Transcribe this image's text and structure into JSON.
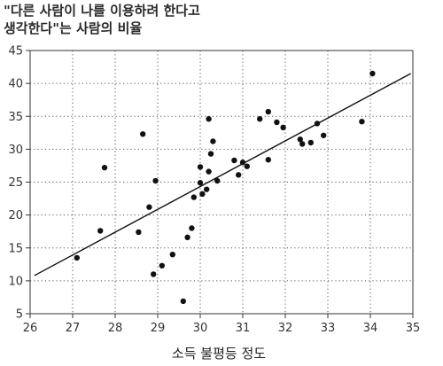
{
  "title_lines": [
    "\"다른 사람이 나를 이용하려 한다고",
    "생각한다\"는 사람의 비율"
  ],
  "chart_data": {
    "type": "scatter",
    "title": "\"다른 사람이 나를 이용하려 한다고 생각한다\"는 사람의 비율",
    "xlabel": "소득 불평등 정도",
    "ylabel": "",
    "xlim": [
      26,
      35
    ],
    "ylim": [
      5,
      45
    ],
    "x_ticks": [
      26,
      27,
      28,
      29,
      30,
      31,
      32,
      33,
      34,
      35
    ],
    "y_ticks": [
      5,
      10,
      15,
      20,
      25,
      30,
      35,
      40,
      45
    ],
    "grid": true,
    "grid_style": "dotted",
    "points": [
      {
        "x": 27.1,
        "y": 13.5
      },
      {
        "x": 27.65,
        "y": 17.6
      },
      {
        "x": 27.75,
        "y": 27.2
      },
      {
        "x": 28.55,
        "y": 17.4
      },
      {
        "x": 28.65,
        "y": 32.3
      },
      {
        "x": 28.8,
        "y": 21.2
      },
      {
        "x": 28.9,
        "y": 11.0
      },
      {
        "x": 28.95,
        "y": 25.2
      },
      {
        "x": 29.1,
        "y": 12.3
      },
      {
        "x": 29.35,
        "y": 14.0
      },
      {
        "x": 29.6,
        "y": 6.9
      },
      {
        "x": 29.7,
        "y": 16.6
      },
      {
        "x": 29.8,
        "y": 18.0
      },
      {
        "x": 29.85,
        "y": 22.7
      },
      {
        "x": 30.0,
        "y": 27.3
      },
      {
        "x": 30.0,
        "y": 24.9
      },
      {
        "x": 30.05,
        "y": 23.2
      },
      {
        "x": 30.15,
        "y": 23.9
      },
      {
        "x": 30.2,
        "y": 34.6
      },
      {
        "x": 30.2,
        "y": 26.6
      },
      {
        "x": 30.25,
        "y": 29.3
      },
      {
        "x": 30.3,
        "y": 31.2
      },
      {
        "x": 30.4,
        "y": 25.2
      },
      {
        "x": 30.8,
        "y": 28.3
      },
      {
        "x": 30.9,
        "y": 26.1
      },
      {
        "x": 31.0,
        "y": 28.0
      },
      {
        "x": 31.1,
        "y": 27.4
      },
      {
        "x": 31.4,
        "y": 34.6
      },
      {
        "x": 31.6,
        "y": 35.7
      },
      {
        "x": 31.6,
        "y": 28.4
      },
      {
        "x": 31.8,
        "y": 34.1
      },
      {
        "x": 31.95,
        "y": 33.3
      },
      {
        "x": 32.35,
        "y": 31.5
      },
      {
        "x": 32.4,
        "y": 30.8
      },
      {
        "x": 32.6,
        "y": 31.0
      },
      {
        "x": 32.75,
        "y": 33.9
      },
      {
        "x": 32.9,
        "y": 32.1
      },
      {
        "x": 33.8,
        "y": 34.2
      },
      {
        "x": 34.05,
        "y": 41.5
      }
    ],
    "trendline": {
      "x": [
        26.1,
        34.95
      ],
      "y": [
        10.8,
        41.5
      ]
    }
  }
}
